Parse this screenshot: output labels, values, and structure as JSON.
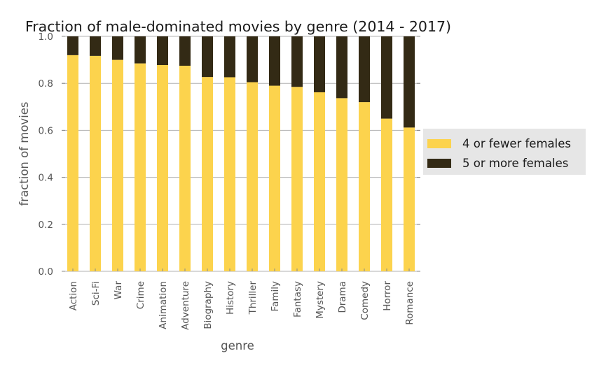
{
  "chart_data": {
    "type": "bar",
    "stacked": true,
    "title": "Fraction of male-dominated movies by genre (2014 - 2017)",
    "xlabel": "genre",
    "ylabel": "fraction of movies",
    "ylim": [
      0,
      1.0
    ],
    "yticks": [
      "0.0",
      "0.2",
      "0.4",
      "0.6",
      "0.8",
      "1.0"
    ],
    "grid": "horizontal",
    "legend_position": "right",
    "categories": [
      "Action",
      "Sci-Fi",
      "War",
      "Crime",
      "Animation",
      "Adventure",
      "Biography",
      "History",
      "Thriller",
      "Family",
      "Fantasy",
      "Mystery",
      "Drama",
      "Comedy",
      "Horror",
      "Romance"
    ],
    "series": [
      {
        "name": "4 or fewer females",
        "color": "#fcd34d",
        "values": [
          0.92,
          0.917,
          0.9,
          0.885,
          0.878,
          0.875,
          0.827,
          0.826,
          0.805,
          0.79,
          0.785,
          0.762,
          0.737,
          0.72,
          0.65,
          0.612
        ]
      },
      {
        "name": "5 or more females",
        "color": "#332a15",
        "values": [
          0.08,
          0.083,
          0.1,
          0.115,
          0.122,
          0.125,
          0.173,
          0.174,
          0.195,
          0.21,
          0.215,
          0.238,
          0.263,
          0.28,
          0.35,
          0.388
        ]
      }
    ]
  }
}
